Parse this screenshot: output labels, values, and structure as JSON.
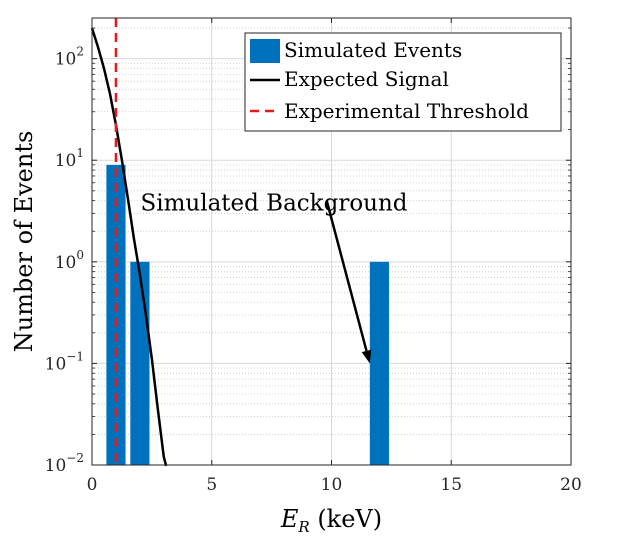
{
  "chart_data": {
    "type": "bar",
    "title": "",
    "xlabel": "E_R (keV)",
    "xlabel_main": "E",
    "xlabel_sub": "R",
    "xlabel_units": " (keV)",
    "ylabel": "Number of Events",
    "xlim": [
      0,
      20
    ],
    "ylim_log10": [
      -2,
      2.4
    ],
    "yscale": "log",
    "grid": true,
    "x_ticks": [
      {
        "value": 0,
        "label": "0"
      },
      {
        "value": 5,
        "label": "5"
      },
      {
        "value": 10,
        "label": "10"
      },
      {
        "value": 15,
        "label": "15"
      },
      {
        "value": 20,
        "label": "20"
      }
    ],
    "y_ticks": [
      {
        "exp": -2,
        "base": "10",
        "sup": "−2"
      },
      {
        "exp": -1,
        "base": "10",
        "sup": "−1"
      },
      {
        "exp": 0,
        "base": "10",
        "sup": "0"
      },
      {
        "exp": 1,
        "base": "10",
        "sup": "1"
      },
      {
        "exp": 2,
        "base": "10",
        "sup": "2"
      }
    ],
    "series": [
      {
        "name": "Simulated Events",
        "kind": "histogram",
        "color": "#0072bd",
        "bars": [
          {
            "x0": 0.6,
            "x1": 1.4,
            "value": 9
          },
          {
            "x0": 1.6,
            "x1": 2.4,
            "value": 1
          },
          {
            "x0": 11.6,
            "x1": 12.4,
            "value": 1
          }
        ]
      },
      {
        "name": "Expected Signal",
        "kind": "line",
        "color": "#000000",
        "x": [
          0,
          0.25,
          0.5,
          0.75,
          1.0,
          1.25,
          1.5,
          1.75,
          2.0,
          2.25,
          2.5,
          2.75,
          3.0,
          3.1
        ],
        "y": [
          200,
          130,
          80,
          45,
          22,
          10,
          4.2,
          1.7,
          0.75,
          0.3,
          0.11,
          0.035,
          0.012,
          0.0098
        ]
      },
      {
        "name": "Experimental Threshold",
        "kind": "vline",
        "color": "#e41a1c",
        "x": 1.0
      }
    ],
    "legend": {
      "position": "top-right",
      "entries": [
        "Simulated Events",
        "Expected Signal",
        "Experimental Threshold"
      ]
    },
    "annotations": [
      {
        "text": "Simulated Background",
        "arrow_from": {
          "x": 9.8,
          "y": 4.0
        },
        "arrow_to": {
          "x": 11.6,
          "y": 0.1
        }
      }
    ]
  }
}
